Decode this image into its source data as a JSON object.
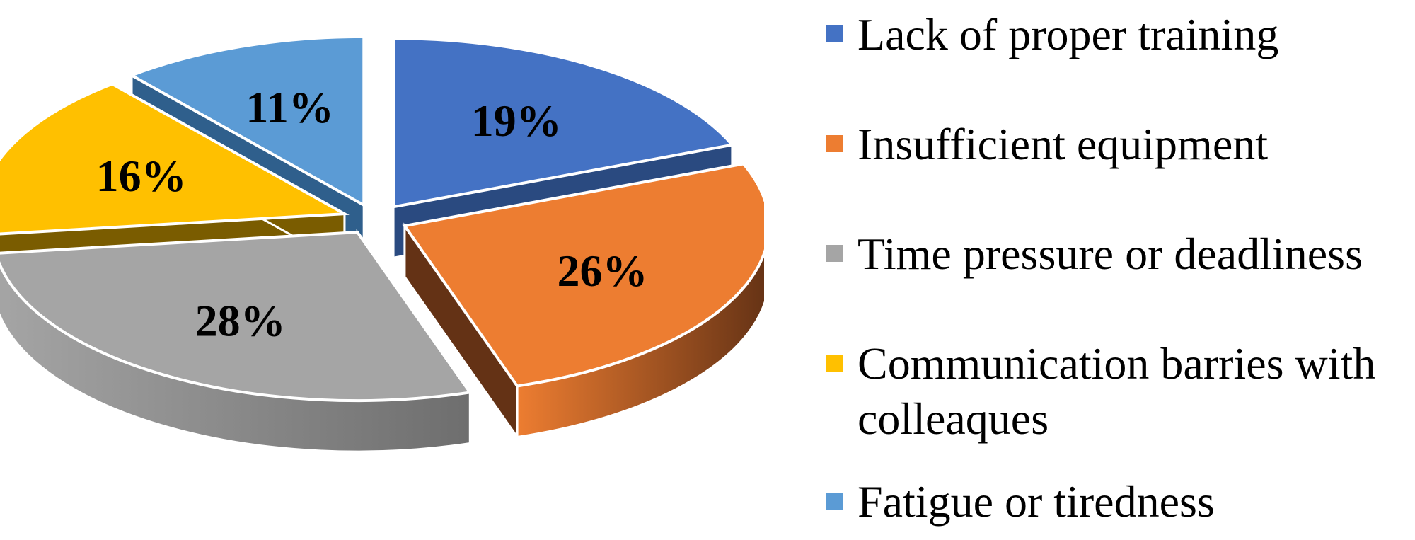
{
  "chart_data": {
    "type": "pie",
    "title": "",
    "slices": [
      {
        "label": "Lack of proper training",
        "value": 19,
        "display": "19%",
        "color": "#4472C4",
        "side_color": "#2A4A80"
      },
      {
        "label": "Insufficient equipment",
        "value": 26,
        "display": "26%",
        "color": "#ED7D31",
        "side_color": "#643215"
      },
      {
        "label": "Time pressure or deadliness",
        "value": 28,
        "display": "28%",
        "color": "#A5A5A5",
        "side_color": "#6E6E6E"
      },
      {
        "label": "Communication barries with colleaques",
        "value": 16,
        "display": "16%",
        "color": "#FFC000",
        "side_color": "#7A5C00"
      },
      {
        "label": "Fatigue or tiredness",
        "value": 11,
        "display": "11%",
        "color": "#5B9BD5",
        "side_color": "#2F5F8C"
      }
    ],
    "legend_position": "right",
    "style": "3d-exploded-pie"
  }
}
